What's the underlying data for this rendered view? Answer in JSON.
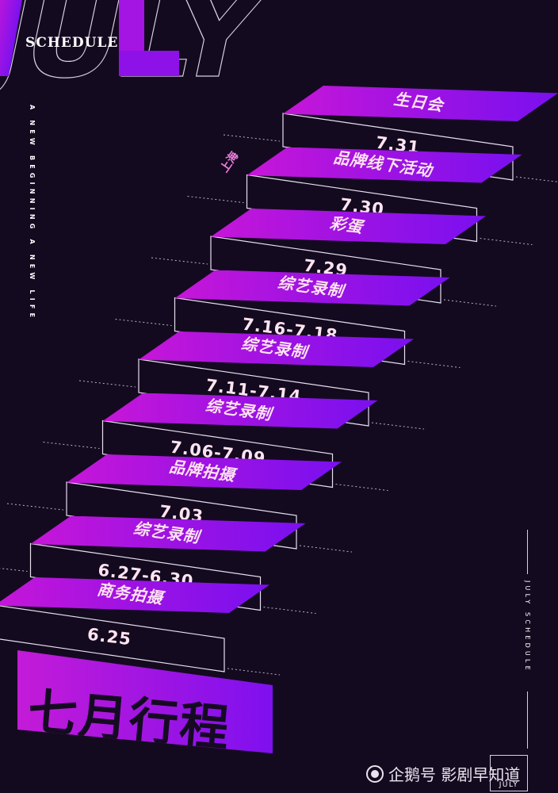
{
  "header": {
    "big_word": "JULY",
    "overlay_word": "SCHEDULE"
  },
  "side_tagline": "A NEW BEGINNING A NEW LIFE",
  "location_label": "上海",
  "steps": [
    {
      "title": "生日会",
      "date": "7.31"
    },
    {
      "title": "品牌线下活动",
      "date": "7.30"
    },
    {
      "title": "彩蛋",
      "date": "7.29"
    },
    {
      "title": "综艺录制",
      "date": "7.16-7.18"
    },
    {
      "title": "综艺录制",
      "date": "7.11-7.14"
    },
    {
      "title": "综艺录制",
      "date": "7.06-7.09"
    },
    {
      "title": "品牌拍摄",
      "date": "7.03"
    },
    {
      "title": "综艺录制",
      "date": "6.27-6.30"
    },
    {
      "title": "商务拍摄",
      "date": "6.25"
    }
  ],
  "main_title": "七月行程",
  "right_tagline": "JULY SCHEDULE",
  "badge_text": "JULY",
  "watermark": "企鹅号 影剧早知道",
  "colors": {
    "background": "#140a20",
    "magenta": "#c716d8",
    "violet": "#7a10f0",
    "label_text": "#ffe4f0"
  }
}
